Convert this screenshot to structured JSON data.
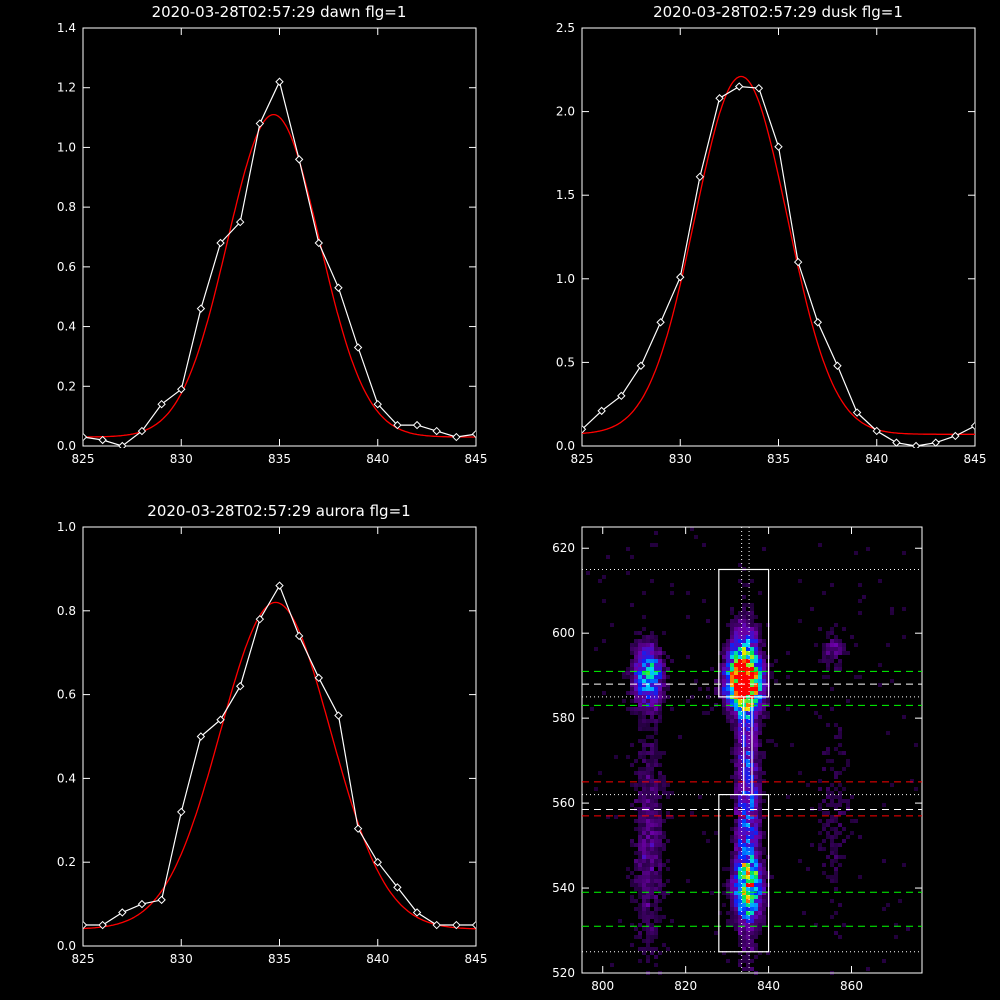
{
  "chart_data": [
    {
      "id": "dawn",
      "type": "line",
      "title": "2020-03-28T02:57:29 dawn flg=1",
      "xlabel": "",
      "ylabel": "",
      "xlim": [
        825,
        845
      ],
      "ylim": [
        0,
        1.4
      ],
      "xticks": [
        825,
        830,
        835,
        840,
        845
      ],
      "yticks": [
        0.0,
        0.2,
        0.4,
        0.6,
        0.8,
        1.0,
        1.2,
        1.4
      ],
      "ytick_labels": [
        "0.0",
        "0.2",
        "0.4",
        "0.6",
        "0.8",
        "1.0",
        "1.2",
        "1.4"
      ],
      "series": [
        {
          "color": "#ffffff",
          "marker": "diamond",
          "x": [
            825,
            826,
            827,
            828,
            829,
            830,
            831,
            832,
            833,
            834,
            835,
            836,
            837,
            838,
            839,
            840,
            841,
            842,
            843,
            844,
            845
          ],
          "values": [
            0.03,
            0.02,
            0.0,
            0.05,
            0.14,
            0.19,
            0.46,
            0.68,
            0.75,
            1.08,
            1.22,
            0.96,
            0.68,
            0.53,
            0.33,
            0.14,
            0.07,
            0.07,
            0.05,
            0.03,
            0.04
          ]
        },
        {
          "color": "#ff0000",
          "fit": "gaussian",
          "center": 834.7,
          "sigma": 2.35,
          "amplitude": 1.08,
          "offset": 0.03
        }
      ]
    },
    {
      "id": "dusk",
      "type": "line",
      "title": "2020-03-28T02:57:29 dusk flg=1",
      "xlabel": "",
      "ylabel": "",
      "xlim": [
        825,
        845
      ],
      "ylim": [
        0,
        2.5
      ],
      "xticks": [
        825,
        830,
        835,
        840,
        845
      ],
      "yticks": [
        0.0,
        0.5,
        1.0,
        1.5,
        2.0,
        2.5
      ],
      "ytick_labels": [
        "0.0",
        "0.5",
        "1.0",
        "1.5",
        "2.0",
        "2.5"
      ],
      "series": [
        {
          "color": "#ffffff",
          "marker": "diamond",
          "x": [
            825,
            826,
            827,
            828,
            829,
            830,
            831,
            832,
            833,
            834,
            835,
            836,
            837,
            838,
            839,
            840,
            841,
            842,
            843,
            844,
            845
          ],
          "values": [
            0.1,
            0.21,
            0.3,
            0.48,
            0.74,
            1.01,
            1.61,
            2.08,
            2.15,
            2.14,
            1.79,
            1.1,
            0.74,
            0.48,
            0.2,
            0.09,
            0.02,
            0.0,
            0.02,
            0.06,
            0.12
          ]
        },
        {
          "color": "#ff0000",
          "fit": "gaussian",
          "center": 833.1,
          "sigma": 2.35,
          "amplitude": 2.14,
          "offset": 0.07
        }
      ]
    },
    {
      "id": "aurora",
      "type": "line",
      "title": "2020-03-28T02:57:29 aurora flg=1",
      "xlabel": "",
      "ylabel": "",
      "xlim": [
        825,
        845
      ],
      "ylim": [
        0,
        1.0
      ],
      "xticks": [
        825,
        830,
        835,
        840,
        845
      ],
      "yticks": [
        0.0,
        0.2,
        0.4,
        0.6,
        0.8,
        1.0
      ],
      "ytick_labels": [
        "0.0",
        "0.2",
        "0.4",
        "0.6",
        "0.8",
        "1.0"
      ],
      "series": [
        {
          "color": "#ffffff",
          "marker": "diamond",
          "x": [
            825,
            826,
            827,
            828,
            829,
            830,
            831,
            832,
            833,
            834,
            835,
            836,
            837,
            838,
            839,
            840,
            841,
            842,
            843,
            844,
            845
          ],
          "values": [
            0.05,
            0.05,
            0.08,
            0.1,
            0.11,
            0.32,
            0.5,
            0.54,
            0.62,
            0.78,
            0.86,
            0.74,
            0.64,
            0.55,
            0.28,
            0.2,
            0.14,
            0.08,
            0.05,
            0.05,
            0.05
          ]
        },
        {
          "color": "#ff0000",
          "fit": "gaussian",
          "center": 834.8,
          "sigma": 2.8,
          "amplitude": 0.78,
          "offset": 0.04
        }
      ]
    },
    {
      "id": "image",
      "type": "heatmap",
      "title": "",
      "xlabel": "",
      "ylabel": "",
      "xlim": [
        795,
        877
      ],
      "ylim": [
        520,
        625
      ],
      "xticks": [
        800,
        820,
        840,
        860
      ],
      "yticks": [
        520,
        540,
        560,
        580,
        600,
        620
      ],
      "colormap": "rainbow",
      "blobs": [
        {
          "x": 834,
          "y": 588,
          "sx": 3.0,
          "sy": 4.0,
          "amp": 1.0
        },
        {
          "x": 834,
          "y": 593,
          "sx": 2.5,
          "sy": 6.0,
          "amp": 0.55
        },
        {
          "x": 835,
          "y": 540,
          "sx": 2.5,
          "sy": 5.0,
          "amp": 0.6
        },
        {
          "x": 835,
          "y": 560,
          "sx": 2.0,
          "sy": 22.0,
          "amp": 0.45
        },
        {
          "x": 811,
          "y": 590,
          "sx": 2.5,
          "sy": 5.0,
          "amp": 0.6
        },
        {
          "x": 811,
          "y": 550,
          "sx": 2.5,
          "sy": 18.0,
          "amp": 0.22
        },
        {
          "x": 856,
          "y": 596,
          "sx": 2.0,
          "sy": 3.0,
          "amp": 0.2
        },
        {
          "x": 856,
          "y": 556,
          "sx": 3.0,
          "sy": 15.0,
          "amp": 0.1
        }
      ],
      "boxes": [
        {
          "x0": 828,
          "x1": 840,
          "y0": 585,
          "y1": 615,
          "color": "#ffffff"
        },
        {
          "x0": 828,
          "x1": 840,
          "y0": 525,
          "y1": 562,
          "color": "#ffffff"
        },
        {
          "x0": 834,
          "x1": 836,
          "y0": 562,
          "y1": 585,
          "color": "#ffffff"
        }
      ],
      "hlines": [
        {
          "y": 615,
          "color": "#ffffff",
          "style": "dotted"
        },
        {
          "y": 591,
          "color": "#00ff00",
          "style": "dashed"
        },
        {
          "y": 588,
          "color": "#ffffff",
          "style": "dashed"
        },
        {
          "y": 585,
          "color": "#ffffff",
          "style": "dotted"
        },
        {
          "y": 583,
          "color": "#00ff00",
          "style": "dashed"
        },
        {
          "y": 565,
          "color": "#ff0000",
          "style": "dashed"
        },
        {
          "y": 562,
          "color": "#ffffff",
          "style": "dotted"
        },
        {
          "y": 558.5,
          "color": "#ffffff",
          "style": "dashed"
        },
        {
          "y": 557,
          "color": "#ff0000",
          "style": "dashed"
        },
        {
          "y": 539,
          "color": "#00ff00",
          "style": "dashed"
        },
        {
          "y": 531,
          "color": "#00ff00",
          "style": "dashed"
        },
        {
          "y": 525,
          "color": "#ffffff",
          "style": "dotted"
        }
      ],
      "vlines": [
        {
          "x": 833.5,
          "color": "#ffffff",
          "style": "dotted"
        },
        {
          "x": 835.3,
          "color": "#ffffff",
          "style": "dotted"
        }
      ]
    }
  ]
}
